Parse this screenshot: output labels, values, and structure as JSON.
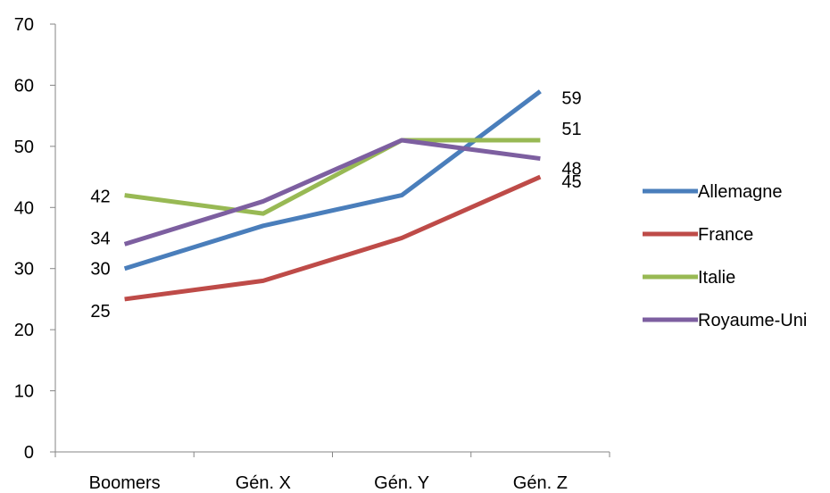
{
  "chart_data": {
    "type": "line",
    "title": "",
    "xlabel": "",
    "ylabel": "",
    "categories": [
      "Boomers",
      "Gén. X",
      "Gén. Y",
      "Gén. Z"
    ],
    "ylim": [
      0,
      70
    ],
    "yticks": [
      0,
      10,
      20,
      30,
      40,
      50,
      60,
      70
    ],
    "grid": false,
    "legend_position": "right",
    "series": [
      {
        "name": "Allemagne",
        "color": "#4a7ebb",
        "values": [
          30,
          37,
          42,
          59
        ],
        "data_labels": [
          {
            "index": 0,
            "text": "30"
          },
          {
            "index": 3,
            "text": "59"
          }
        ]
      },
      {
        "name": "France",
        "color": "#be4b48",
        "values": [
          25,
          28,
          35,
          45
        ],
        "data_labels": [
          {
            "index": 0,
            "text": "25"
          },
          {
            "index": 3,
            "text": "45"
          }
        ]
      },
      {
        "name": "Italie",
        "color": "#98b954",
        "values": [
          42,
          39,
          51,
          51
        ],
        "data_labels": [
          {
            "index": 0,
            "text": "42"
          },
          {
            "index": 3,
            "text": "51"
          }
        ]
      },
      {
        "name": "Royaume-Uni",
        "color": "#7d5fa0",
        "values": [
          34,
          41,
          51,
          48
        ],
        "data_labels": [
          {
            "index": 0,
            "text": "34"
          },
          {
            "index": 3,
            "text": "48"
          }
        ]
      }
    ]
  }
}
